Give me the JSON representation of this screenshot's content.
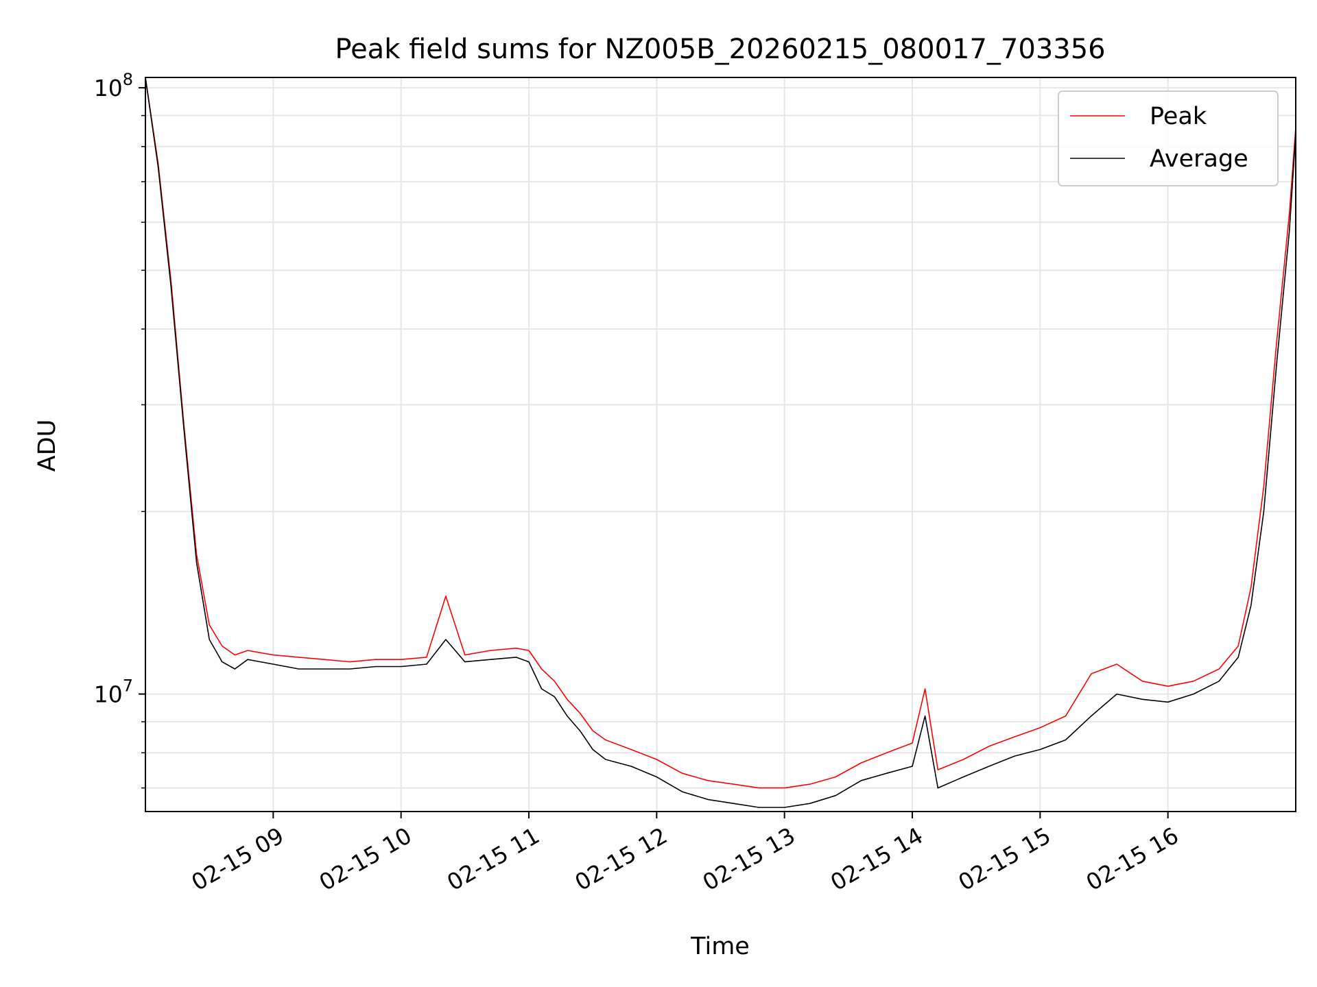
{
  "chart_data": {
    "type": "line",
    "title": "Peak field sums for NZ005B_20260215_080017_703356",
    "xlabel": "Time",
    "ylabel": "ADU",
    "yscale": "log",
    "ylim": [
      6400000,
      104000000
    ],
    "xlim_hours": [
      8.0,
      17.0
    ],
    "grid": true,
    "legend_position": "top-right",
    "x_ticks": [
      {
        "hour": 9,
        "label": "02-15 09"
      },
      {
        "hour": 10,
        "label": "02-15 10"
      },
      {
        "hour": 11,
        "label": "02-15 11"
      },
      {
        "hour": 12,
        "label": "02-15 12"
      },
      {
        "hour": 13,
        "label": "02-15 13"
      },
      {
        "hour": 14,
        "label": "02-15 14"
      },
      {
        "hour": 15,
        "label": "02-15 15"
      },
      {
        "hour": 16,
        "label": "02-15 16"
      }
    ],
    "y_major_ticks": [
      {
        "value": 10000000,
        "base": "10",
        "exp": "7"
      },
      {
        "value": 100000000,
        "base": "10",
        "exp": "8"
      }
    ],
    "y_minor_ticks": [
      7000000,
      8000000,
      9000000,
      20000000,
      30000000,
      40000000,
      50000000,
      60000000,
      70000000,
      80000000,
      90000000
    ],
    "series": [
      {
        "name": "Peak",
        "color": "#ff0000",
        "hours": [
          8.0,
          8.1,
          8.2,
          8.3,
          8.4,
          8.5,
          8.6,
          8.7,
          8.8,
          8.9,
          9.0,
          9.2,
          9.4,
          9.6,
          9.8,
          10.0,
          10.2,
          10.35,
          10.5,
          10.7,
          10.9,
          11.0,
          11.1,
          11.2,
          11.3,
          11.4,
          11.5,
          11.6,
          11.8,
          12.0,
          12.2,
          12.4,
          12.6,
          12.8,
          13.0,
          13.2,
          13.4,
          13.6,
          13.8,
          14.0,
          14.1,
          14.2,
          14.4,
          14.6,
          14.8,
          15.0,
          15.2,
          15.4,
          15.6,
          15.8,
          16.0,
          16.2,
          16.4,
          16.55,
          16.65,
          16.75,
          16.85,
          16.95,
          17.0
        ],
        "values": [
          104000000,
          75000000,
          48000000,
          28000000,
          17000000,
          13000000,
          12000000,
          11600000,
          11800000,
          11700000,
          11600000,
          11500000,
          11400000,
          11300000,
          11400000,
          11400000,
          11500000,
          14500000,
          11600000,
          11800000,
          11900000,
          11800000,
          11000000,
          10500000,
          9800000,
          9300000,
          8700000,
          8400000,
          8100000,
          7800000,
          7400000,
          7200000,
          7100000,
          7000000,
          7000000,
          7100000,
          7300000,
          7700000,
          8000000,
          8300000,
          10200000,
          7500000,
          7800000,
          8200000,
          8500000,
          8800000,
          9200000,
          10800000,
          11200000,
          10500000,
          10300000,
          10500000,
          11000000,
          12000000,
          15000000,
          22000000,
          38000000,
          62000000,
          86000000
        ]
      },
      {
        "name": "Average",
        "color": "#000000",
        "hours": [
          8.0,
          8.1,
          8.2,
          8.3,
          8.4,
          8.5,
          8.6,
          8.7,
          8.8,
          8.9,
          9.0,
          9.2,
          9.4,
          9.6,
          9.8,
          10.0,
          10.2,
          10.35,
          10.5,
          10.7,
          10.9,
          11.0,
          11.1,
          11.2,
          11.3,
          11.4,
          11.5,
          11.6,
          11.8,
          12.0,
          12.2,
          12.4,
          12.6,
          12.8,
          13.0,
          13.2,
          13.4,
          13.6,
          13.8,
          14.0,
          14.1,
          14.2,
          14.4,
          14.6,
          14.8,
          15.0,
          15.2,
          15.4,
          15.6,
          15.8,
          16.0,
          16.2,
          16.4,
          16.55,
          16.65,
          16.75,
          16.85,
          16.95,
          17.0
        ],
        "values": [
          104000000,
          74000000,
          47000000,
          27500000,
          16500000,
          12300000,
          11300000,
          11000000,
          11400000,
          11300000,
          11200000,
          11000000,
          11000000,
          11000000,
          11100000,
          11100000,
          11200000,
          12300000,
          11300000,
          11400000,
          11500000,
          11300000,
          10200000,
          9900000,
          9200000,
          8700000,
          8100000,
          7800000,
          7600000,
          7300000,
          6900000,
          6700000,
          6600000,
          6500000,
          6500000,
          6600000,
          6800000,
          7200000,
          7400000,
          7600000,
          9200000,
          7000000,
          7300000,
          7600000,
          7900000,
          8100000,
          8400000,
          9200000,
          10000000,
          9800000,
          9700000,
          10000000,
          10500000,
          11500000,
          14000000,
          20000000,
          35000000,
          58000000,
          84000000
        ]
      }
    ]
  }
}
